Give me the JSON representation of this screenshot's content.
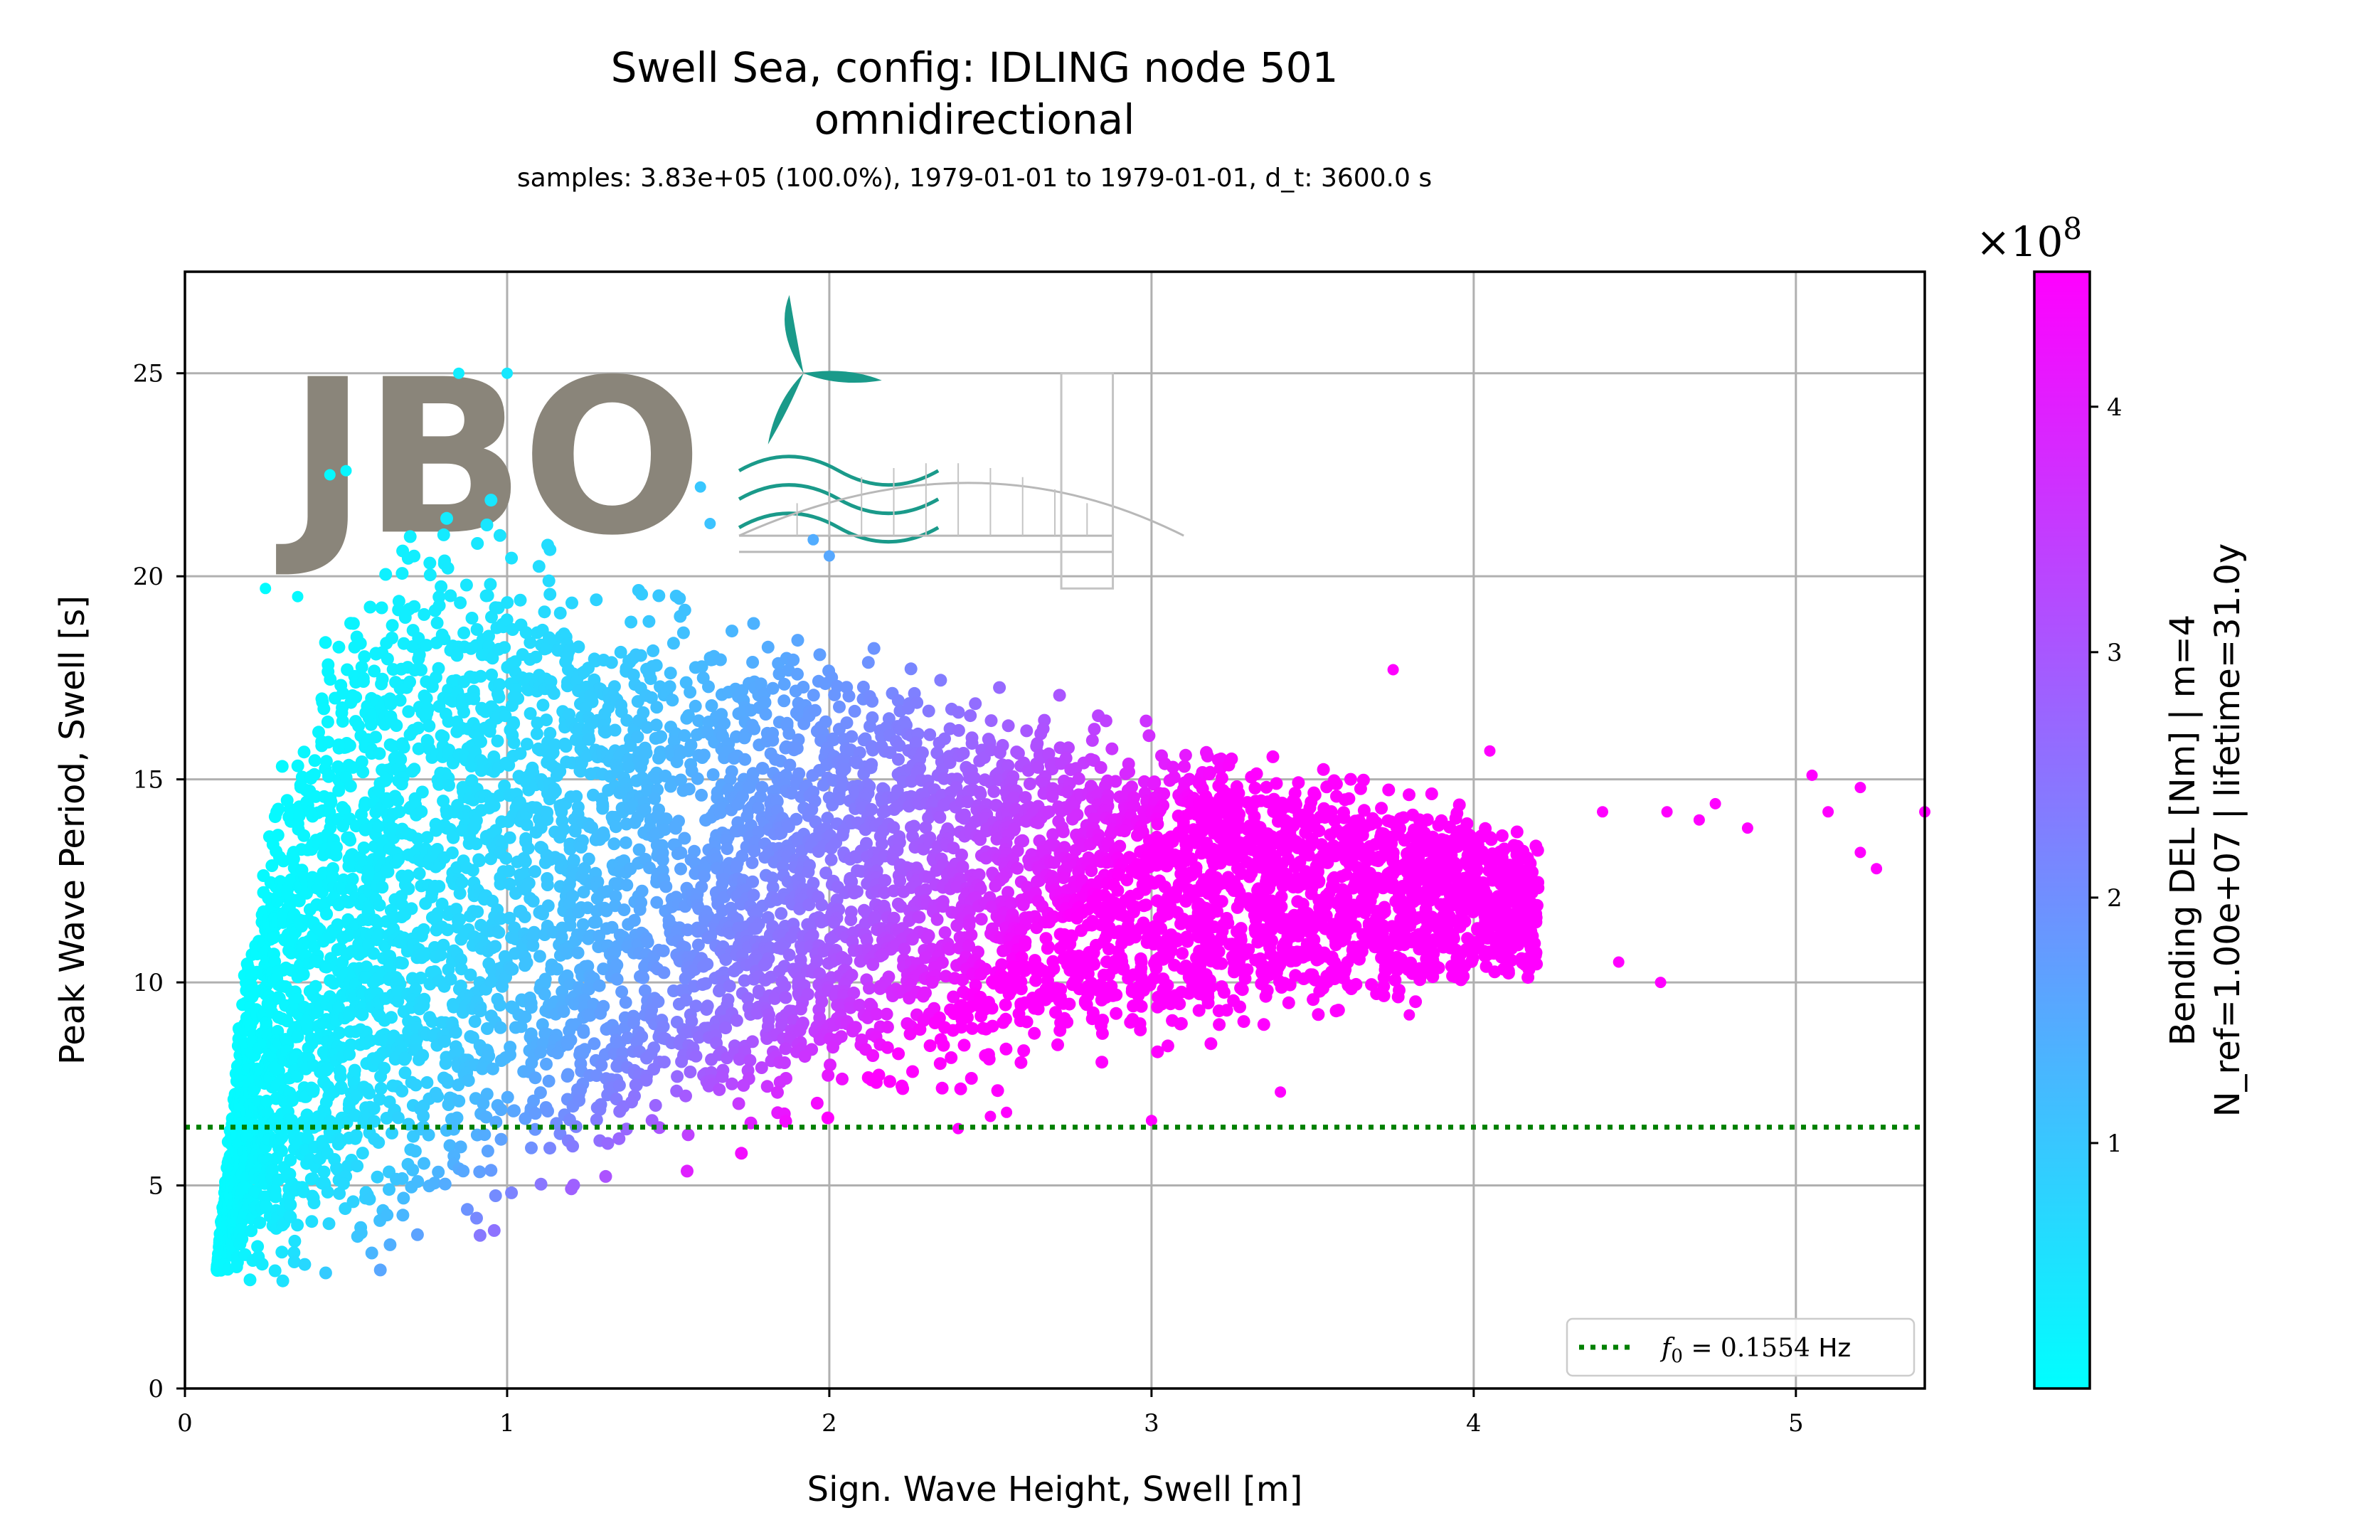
{
  "chart_data": {
    "type": "scatter",
    "title": "Swell Sea, config: IDLING node 501",
    "subtitle": "omnidirectional",
    "info_line": "samples: 3.83e+05 (100.0%), 1979-01-01 to 1979-01-01, d_t: 3600.0 s",
    "xlabel": "Sign. Wave Height, Swell [m]",
    "ylabel": "Peak Wave Period, Swell [s]",
    "xlim": [
      0,
      5.4
    ],
    "ylim": [
      0,
      27.5
    ],
    "xticks": [
      0,
      1,
      2,
      3,
      4,
      5
    ],
    "yticks": [
      0,
      5,
      10,
      15,
      20,
      25
    ],
    "grid": true,
    "reference_line": {
      "y": 6.435,
      "label": "f_0 = 0.1554 Hz",
      "label_parts": {
        "math": "f",
        "sub": "0",
        "rest": " = 0.1554 ",
        "unit": "Hz"
      },
      "color": "#008000",
      "style": "dotted"
    },
    "legend_position": "lower right",
    "colorbar": {
      "label_line1": "Bending DEL [Nm] | m=4",
      "label_line2": "N_ref=1.00e+07 | lifetime=31.0y",
      "multiplier": "×10",
      "multiplier_exp": "8",
      "range": [
        0.0,
        4.55
      ],
      "ticks": [
        1,
        2,
        3,
        4
      ],
      "colormap_start": "#00ffff",
      "colormap_end": "#ff00ff"
    },
    "point_cloud": {
      "description_boundary_min_period": [
        [
          0.1,
          2.9
        ],
        [
          0.35,
          2.0
        ],
        [
          0.6,
          2.9
        ],
        [
          1.0,
          4.0
        ],
        [
          1.5,
          5.2
        ],
        [
          2.0,
          6.5
        ],
        [
          2.5,
          7.3
        ],
        [
          3.0,
          8.1
        ],
        [
          3.5,
          9.0
        ],
        [
          4.0,
          9.8
        ],
        [
          4.2,
          10.1
        ]
      ],
      "description_boundary_max_period": [
        [
          0.1,
          3.0
        ],
        [
          0.2,
          12.5
        ],
        [
          0.35,
          17.0
        ],
        [
          0.5,
          20.0
        ],
        [
          0.7,
          21.5
        ],
        [
          0.9,
          22.0
        ],
        [
          1.1,
          21.5
        ],
        [
          1.5,
          20.0
        ],
        [
          2.0,
          18.5
        ],
        [
          2.5,
          17.5
        ],
        [
          3.0,
          16.5
        ],
        [
          3.5,
          15.5
        ],
        [
          4.0,
          14.5
        ],
        [
          4.2,
          13.5
        ]
      ],
      "outliers": [
        [
          1.0,
          25.0
        ],
        [
          0.85,
          25.0
        ],
        [
          1.6,
          22.2
        ],
        [
          1.63,
          21.3
        ],
        [
          0.45,
          22.5
        ],
        [
          0.5,
          22.6
        ],
        [
          0.35,
          19.5
        ],
        [
          0.25,
          19.7
        ],
        [
          1.95,
          20.9
        ],
        [
          2.0,
          20.5
        ],
        [
          3.75,
          17.7
        ],
        [
          4.05,
          15.7
        ],
        [
          4.4,
          14.2
        ],
        [
          4.6,
          14.2
        ],
        [
          4.7,
          14.0
        ],
        [
          4.75,
          14.4
        ],
        [
          4.85,
          13.8
        ],
        [
          5.05,
          15.1
        ],
        [
          5.1,
          14.2
        ],
        [
          5.2,
          14.8
        ],
        [
          5.4,
          14.2
        ],
        [
          5.2,
          13.2
        ],
        [
          5.25,
          12.8
        ],
        [
          4.45,
          10.5
        ],
        [
          4.58,
          10.0
        ],
        [
          3.4,
          7.3
        ],
        [
          3.0,
          6.6
        ],
        [
          2.55,
          6.8
        ],
        [
          2.4,
          6.4
        ],
        [
          2.5,
          6.7
        ],
        [
          3.8,
          9.2
        ],
        [
          4.0,
          11.0
        ],
        [
          4.1,
          11.8
        ],
        [
          3.9,
          12.5
        ]
      ]
    }
  },
  "watermark": {
    "logo_text": "JBO"
  }
}
